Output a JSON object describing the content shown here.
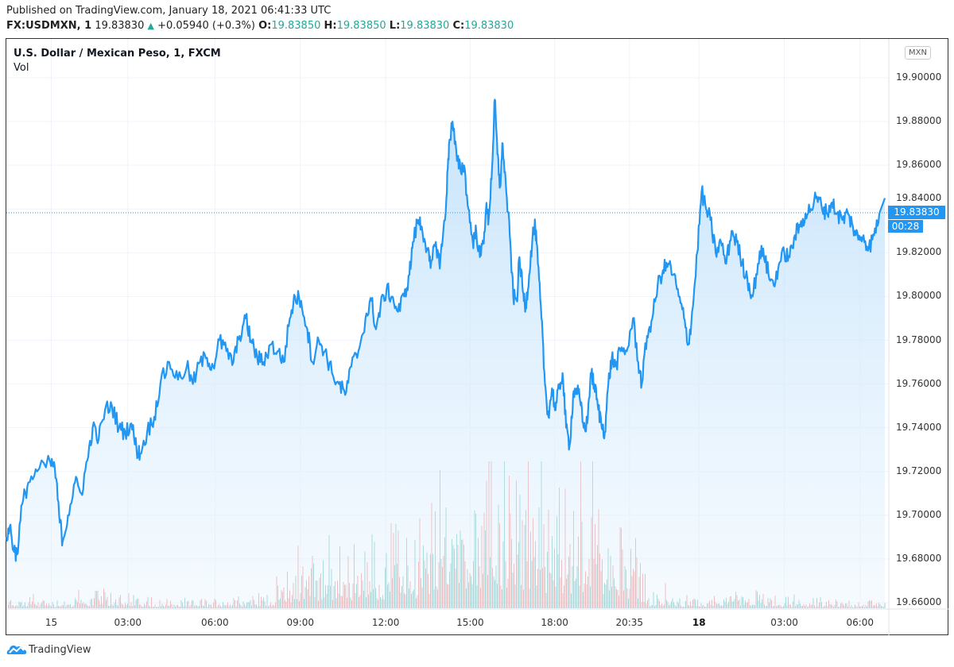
{
  "header": {
    "published": "Published on TradingView.com, January 18, 2021 06:41:33 UTC",
    "symbol": "FX:USDMXN, 1",
    "last": "19.83830",
    "change": "+0.05940 (+0.3%)",
    "open_label": "O:",
    "open": "19.83850",
    "high_label": "H:",
    "high": "19.83850",
    "low_label": "L:",
    "low": "19.83830",
    "close_label": "C:",
    "close": "19.83830"
  },
  "legend": {
    "title": "U.S. Dollar / Mexican Peso, 1, FXCM",
    "volume": "Vol"
  },
  "currency_button": "MXN",
  "price_tag": "19.83830",
  "countdown_tag": "00:28",
  "brand": "TradingView",
  "colors": {
    "line": "#2196f3",
    "fill": "#e3f2fd",
    "vol_up": "#26a69a",
    "vol_down": "#ef5350",
    "text_up": "#26a69a"
  },
  "chart_data": {
    "type": "area",
    "title": "U.S. Dollar / Mexican Peso, 1, FXCM",
    "xlabel": "",
    "ylabel": "MXN",
    "ylim": [
      19.655,
      19.912
    ],
    "yticks": [
      "19.90000",
      "19.88000",
      "19.86000",
      "19.84000",
      "19.82000",
      "19.80000",
      "19.78000",
      "19.76000",
      "19.74000",
      "19.72000",
      "19.70000",
      "19.68000",
      "19.66000"
    ],
    "xticks": [
      {
        "label": "15",
        "bold": false,
        "t": 0.051
      },
      {
        "label": "03:00",
        "bold": false,
        "t": 0.138
      },
      {
        "label": "06:00",
        "bold": false,
        "t": 0.237
      },
      {
        "label": "09:00",
        "bold": false,
        "t": 0.334
      },
      {
        "label": "12:00",
        "bold": false,
        "t": 0.431
      },
      {
        "label": "15:00",
        "bold": false,
        "t": 0.527
      },
      {
        "label": "18:00",
        "bold": false,
        "t": 0.623
      },
      {
        "label": "20:35",
        "bold": false,
        "t": 0.708
      },
      {
        "label": "18",
        "bold": true,
        "t": 0.787
      },
      {
        "label": "03:00",
        "bold": false,
        "t": 0.884
      },
      {
        "label": "06:00",
        "bold": false,
        "t": 0.97
      }
    ],
    "last_price": 19.8383,
    "series": [
      {
        "name": "USDMXN close",
        "points": [
          [
            0.0,
            19.69
          ],
          [
            0.004,
            19.695
          ],
          [
            0.008,
            19.685
          ],
          [
            0.012,
            19.682
          ],
          [
            0.018,
            19.705
          ],
          [
            0.025,
            19.715
          ],
          [
            0.035,
            19.72
          ],
          [
            0.05,
            19.724
          ],
          [
            0.055,
            19.722
          ],
          [
            0.06,
            19.7
          ],
          [
            0.064,
            19.688
          ],
          [
            0.07,
            19.7
          ],
          [
            0.078,
            19.715
          ],
          [
            0.085,
            19.71
          ],
          [
            0.092,
            19.725
          ],
          [
            0.098,
            19.74
          ],
          [
            0.105,
            19.735
          ],
          [
            0.112,
            19.748
          ],
          [
            0.12,
            19.75
          ],
          [
            0.128,
            19.74
          ],
          [
            0.135,
            19.738
          ],
          [
            0.142,
            19.742
          ],
          [
            0.148,
            19.73
          ],
          [
            0.152,
            19.728
          ],
          [
            0.16,
            19.738
          ],
          [
            0.168,
            19.745
          ],
          [
            0.175,
            19.76
          ],
          [
            0.185,
            19.77
          ],
          [
            0.195,
            19.762
          ],
          [
            0.205,
            19.768
          ],
          [
            0.212,
            19.76
          ],
          [
            0.22,
            19.77
          ],
          [
            0.228,
            19.772
          ],
          [
            0.235,
            19.768
          ],
          [
            0.242,
            19.78
          ],
          [
            0.25,
            19.775
          ],
          [
            0.258,
            19.77
          ],
          [
            0.265,
            19.782
          ],
          [
            0.272,
            19.79
          ],
          [
            0.278,
            19.78
          ],
          [
            0.285,
            19.772
          ],
          [
            0.292,
            19.77
          ],
          [
            0.3,
            19.778
          ],
          [
            0.308,
            19.775
          ],
          [
            0.315,
            19.77
          ],
          [
            0.322,
            19.79
          ],
          [
            0.328,
            19.8
          ],
          [
            0.335,
            19.798
          ],
          [
            0.342,
            19.785
          ],
          [
            0.348,
            19.77
          ],
          [
            0.355,
            19.78
          ],
          [
            0.362,
            19.775
          ],
          [
            0.37,
            19.765
          ],
          [
            0.378,
            19.76
          ],
          [
            0.385,
            19.755
          ],
          [
            0.392,
            19.768
          ],
          [
            0.4,
            19.775
          ],
          [
            0.408,
            19.79
          ],
          [
            0.415,
            19.798
          ],
          [
            0.42,
            19.785
          ],
          [
            0.425,
            19.795
          ],
          [
            0.432,
            19.803
          ],
          [
            0.438,
            19.8
          ],
          [
            0.445,
            19.793
          ],
          [
            0.452,
            19.8
          ],
          [
            0.458,
            19.81
          ],
          [
            0.462,
            19.825
          ],
          [
            0.468,
            19.835
          ],
          [
            0.472,
            19.832
          ],
          [
            0.478,
            19.822
          ],
          [
            0.482,
            19.813
          ],
          [
            0.488,
            19.825
          ],
          [
            0.492,
            19.815
          ],
          [
            0.495,
            19.823
          ],
          [
            0.5,
            19.845
          ],
          [
            0.503,
            19.87
          ],
          [
            0.507,
            19.88
          ],
          [
            0.512,
            19.862
          ],
          [
            0.516,
            19.858
          ],
          [
            0.52,
            19.86
          ],
          [
            0.525,
            19.84
          ],
          [
            0.53,
            19.825
          ],
          [
            0.534,
            19.83
          ],
          [
            0.538,
            19.818
          ],
          [
            0.542,
            19.825
          ],
          [
            0.545,
            19.84
          ],
          [
            0.548,
            19.835
          ],
          [
            0.552,
            19.86
          ],
          [
            0.555,
            19.89
          ],
          [
            0.558,
            19.865
          ],
          [
            0.561,
            19.85
          ],
          [
            0.564,
            19.87
          ],
          [
            0.568,
            19.848
          ],
          [
            0.572,
            19.828
          ],
          [
            0.576,
            19.8
          ],
          [
            0.58,
            19.798
          ],
          [
            0.583,
            19.818
          ],
          [
            0.587,
            19.802
          ],
          [
            0.59,
            19.795
          ],
          [
            0.594,
            19.81
          ],
          [
            0.598,
            19.828
          ],
          [
            0.601,
            19.832
          ],
          [
            0.604,
            19.815
          ],
          [
            0.608,
            19.79
          ],
          [
            0.612,
            19.76
          ],
          [
            0.616,
            19.745
          ],
          [
            0.62,
            19.758
          ],
          [
            0.624,
            19.748
          ],
          [
            0.628,
            19.758
          ],
          [
            0.632,
            19.765
          ],
          [
            0.636,
            19.74
          ],
          [
            0.64,
            19.732
          ],
          [
            0.644,
            19.755
          ],
          [
            0.648,
            19.758
          ],
          [
            0.652,
            19.752
          ],
          [
            0.656,
            19.74
          ],
          [
            0.66,
            19.742
          ],
          [
            0.664,
            19.765
          ],
          [
            0.668,
            19.76
          ],
          [
            0.672,
            19.75
          ],
          [
            0.676,
            19.742
          ],
          [
            0.68,
            19.738
          ],
          [
            0.684,
            19.76
          ],
          [
            0.688,
            19.772
          ],
          [
            0.692,
            19.768
          ],
          [
            0.698,
            19.775
          ],
          [
            0.705,
            19.775
          ],
          [
            0.712,
            19.79
          ],
          [
            0.718,
            19.77
          ],
          [
            0.722,
            19.76
          ],
          [
            0.728,
            19.782
          ],
          [
            0.734,
            19.79
          ],
          [
            0.74,
            19.805
          ],
          [
            0.746,
            19.812
          ],
          [
            0.752,
            19.815
          ],
          [
            0.758,
            19.81
          ],
          [
            0.764,
            19.8
          ],
          [
            0.77,
            19.79
          ],
          [
            0.775,
            19.778
          ],
          [
            0.78,
            19.795
          ],
          [
            0.785,
            19.82
          ],
          [
            0.79,
            19.848
          ],
          [
            0.795,
            19.84
          ],
          [
            0.8,
            19.835
          ],
          [
            0.806,
            19.82
          ],
          [
            0.812,
            19.825
          ],
          [
            0.818,
            19.815
          ],
          [
            0.824,
            19.83
          ],
          [
            0.83,
            19.825
          ],
          [
            0.836,
            19.815
          ],
          [
            0.842,
            19.808
          ],
          [
            0.848,
            19.8
          ],
          [
            0.854,
            19.815
          ],
          [
            0.86,
            19.822
          ],
          [
            0.866,
            19.81
          ],
          [
            0.872,
            19.805
          ],
          [
            0.878,
            19.815
          ],
          [
            0.884,
            19.82
          ],
          [
            0.89,
            19.818
          ],
          [
            0.896,
            19.828
          ],
          [
            0.902,
            19.832
          ],
          [
            0.908,
            19.838
          ],
          [
            0.914,
            19.84
          ],
          [
            0.92,
            19.845
          ],
          [
            0.926,
            19.842
          ],
          [
            0.932,
            19.838
          ],
          [
            0.938,
            19.843
          ],
          [
            0.944,
            19.838
          ],
          [
            0.95,
            19.835
          ],
          [
            0.956,
            19.838
          ],
          [
            0.962,
            19.832
          ],
          [
            0.968,
            19.826
          ],
          [
            0.974,
            19.828
          ],
          [
            0.98,
            19.822
          ],
          [
            0.986,
            19.828
          ],
          [
            0.992,
            19.838
          ]
        ]
      },
      {
        "name": "Vol",
        "note": "volume bars (relative 0-1), alternating up/down colors",
        "segments": [
          [
            0.0,
            0.05
          ],
          [
            0.08,
            0.05
          ],
          [
            0.1,
            0.1
          ],
          [
            0.2,
            0.04
          ],
          [
            0.3,
            0.08
          ],
          [
            0.33,
            0.3
          ],
          [
            0.38,
            0.3
          ],
          [
            0.42,
            0.35
          ],
          [
            0.47,
            0.45
          ],
          [
            0.5,
            0.7
          ],
          [
            0.55,
            0.85
          ],
          [
            0.6,
            0.7
          ],
          [
            0.65,
            0.55
          ],
          [
            0.7,
            0.45
          ],
          [
            0.72,
            0.3
          ],
          [
            0.73,
            0.08
          ],
          [
            0.78,
            0.05
          ],
          [
            0.84,
            0.1
          ],
          [
            0.88,
            0.05
          ],
          [
            1.0,
            0.04
          ]
        ]
      }
    ]
  }
}
